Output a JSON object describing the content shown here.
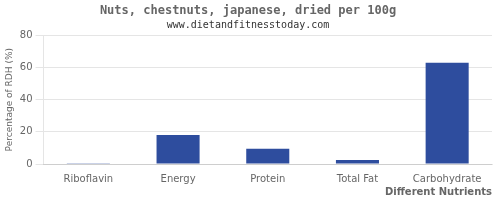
{
  "chart_data": {
    "type": "bar",
    "title": "Nuts, chestnuts, japanese, dried per 100g",
    "subtitle": "www.dietandfitnesstoday.com",
    "xlabel": "Different Nutrients",
    "ylabel": "Percentage of RDH (%)",
    "categories": [
      "Riboflavin",
      "Energy",
      "Protein",
      "Total Fat",
      "Carbohydrate"
    ],
    "values": [
      0.5,
      18,
      9.5,
      2.5,
      63
    ],
    "color": "#2e4d9e",
    "ylim": [
      0,
      80
    ],
    "yticks": [
      0,
      20,
      40,
      60,
      80
    ],
    "grid": true
  }
}
